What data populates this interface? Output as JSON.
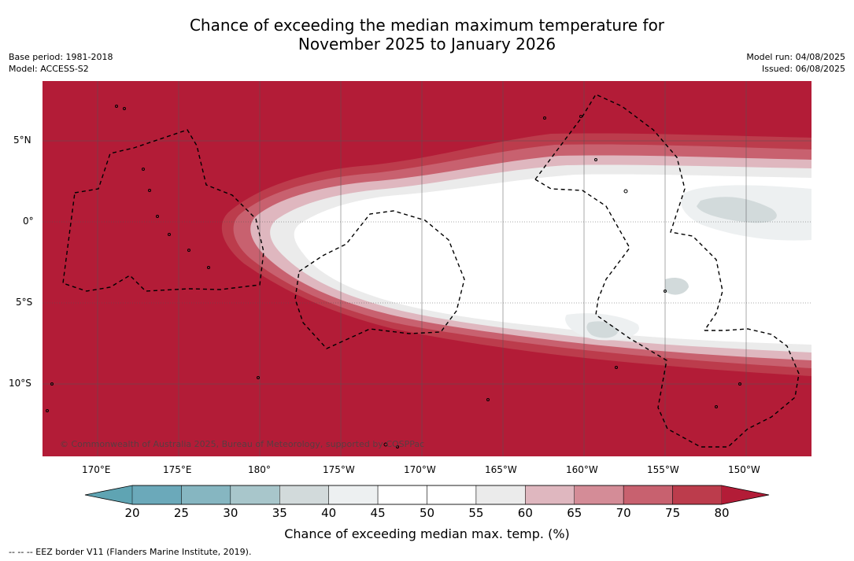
{
  "title": {
    "line1": "Chance of exceeding the median maximum temperature for",
    "line2": "November 2025 to January 2026"
  },
  "meta_left": {
    "base_period": "Base period: 1981-2018",
    "model": "Model: ACCESS-S2"
  },
  "meta_right": {
    "model_run": "Model run: 04/08/2025",
    "issued": "Issued: 06/08/2025"
  },
  "map": {
    "lat_ticks": [
      "5°N",
      "0°",
      "5°S",
      "10°S"
    ],
    "lon_ticks": [
      "170°E",
      "175°E",
      "180°",
      "175°W",
      "170°W",
      "165°W",
      "160°W",
      "155°W",
      "150°W"
    ],
    "copyright": "© Commonwealth of Australia 2025, Bureau of Meteorology, supported by COSPPac"
  },
  "colorbar": {
    "ticks": [
      "20",
      "25",
      "30",
      "35",
      "40",
      "45",
      "50",
      "55",
      "60",
      "65",
      "70",
      "75",
      "80"
    ],
    "colors": [
      "#5fa4b3",
      "#6ba9ba",
      "#86b6c1",
      "#a8c6cb",
      "#d2dadb",
      "#edf0f1",
      "#ffffff",
      "#ffffff",
      "#ebebeb",
      "#dfb7bf",
      "#d48c97",
      "#c8616f",
      "#bc3c4c",
      "#b31c37"
    ],
    "label": "Chance of exceeding median max. temp. (%)"
  },
  "footer": "--  --  -- EEZ border V11 (Flanders Marine Institute, 2019)."
}
